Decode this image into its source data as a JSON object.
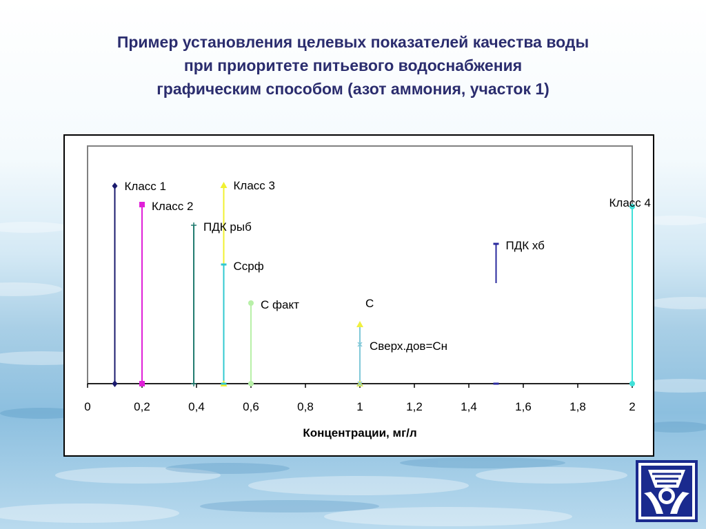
{
  "title": {
    "line1": "Пример установления целевых показателей качества воды",
    "line2": "при приоритете питьевого водоснабжения",
    "line3": "графическим способом (азот аммония, участок 1)"
  },
  "chart_data": {
    "type": "scatter",
    "subtype": "vertical-drop-lines",
    "xlabel": "Концентрации, мг/л",
    "ylabel": "",
    "xlim": [
      0,
      2
    ],
    "x_ticks": [
      "0",
      "0,2",
      "0,4",
      "0,6",
      "0,8",
      "1",
      "1,2",
      "1,4",
      "1,6",
      "1,8",
      "2"
    ],
    "grid": false,
    "legend": "none",
    "series": [
      {
        "name": "Класс 1",
        "x": 0.1,
        "marker": "diamond",
        "color": "#1a1a6e"
      },
      {
        "name": "Класс 2",
        "x": 0.2,
        "marker": "square",
        "color": "#e020d8"
      },
      {
        "name": "ПДК рыб",
        "x": 0.39,
        "marker": "plus",
        "color": "#1e7a6e"
      },
      {
        "name": "Класс 3",
        "x": 0.5,
        "marker": "triangle",
        "color": "#f0f030"
      },
      {
        "name": "Ссрф",
        "x": 0.5,
        "marker": "dash",
        "color": "#30c8d0"
      },
      {
        "name": "С факт",
        "x": 0.6,
        "marker": "circle",
        "color": "#b8f0a8"
      },
      {
        "name": "С",
        "x": 1.0,
        "marker": "triangle",
        "color": "#f0f040"
      },
      {
        "name": "Сверх.дов=Сн",
        "x": 1.0,
        "marker": "x",
        "color": "#80c8d8"
      },
      {
        "name": "ПДК хб",
        "x": 1.5,
        "marker": "dash",
        "color": "#2a2a9e"
      },
      {
        "name": "Класс 4",
        "x": 2.0,
        "marker": "circle",
        "color": "#40e0d8"
      }
    ]
  },
  "logo": {
    "name": "institute-emblem",
    "colors": {
      "primary": "#1a2a8e",
      "accent": "#ffffff"
    }
  }
}
